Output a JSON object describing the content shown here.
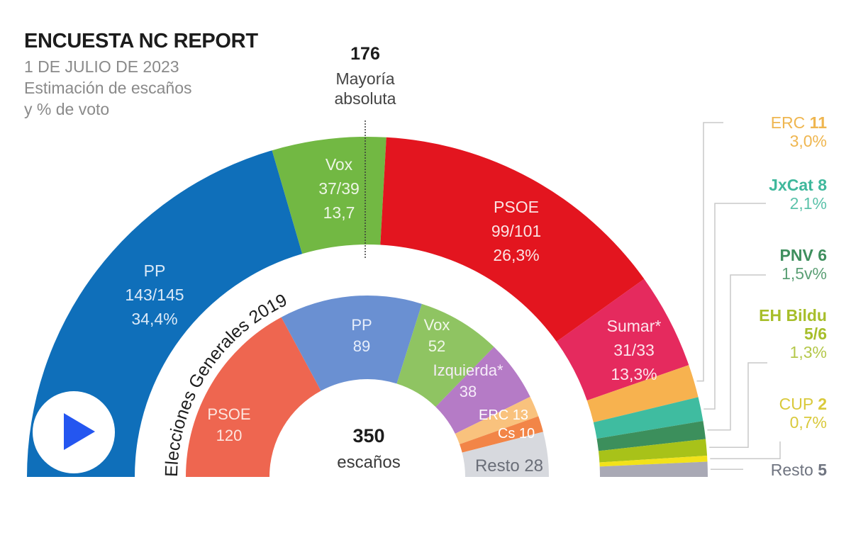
{
  "header": {
    "title": "ENCUESTA NC REPORT",
    "date": "1 DE JULIO DE 2023",
    "subtitle_line1": "Estimación de escaños",
    "subtitle_line2": "y % de voto"
  },
  "majority": {
    "seats": "176",
    "label_line1": "Mayoría",
    "label_line2": "absoluta"
  },
  "center": {
    "total": "350",
    "unit": "escaños"
  },
  "play_button": {
    "icon": "play-icon",
    "color": "#2456f0"
  },
  "chart_data": {
    "type": "pie",
    "title": "ENCUESTA NC REPORT",
    "subtitle": "Estimación de escaños y % de voto",
    "total_seats": 350,
    "majority_seats": 176,
    "series": [
      {
        "name": "Encuesta NC Report 1 julio 2023",
        "ring": "outer",
        "parties": [
          {
            "name": "PP",
            "seats_label": "143/145",
            "seats_min": 143,
            "seats_max": 145,
            "vote_label": "34,4%",
            "vote": 34.4,
            "color": "#0f6fba",
            "text_color": "#dbe9f7"
          },
          {
            "name": "Vox",
            "seats_label": "37/39",
            "seats_min": 37,
            "seats_max": 39,
            "vote_label": "13,7",
            "vote": 13.7,
            "color": "#72b843",
            "text_color": "#eef6e6"
          },
          {
            "name": "PSOE",
            "seats_label": "99/101",
            "seats_min": 99,
            "seats_max": 101,
            "vote_label": "26,3%",
            "vote": 26.3,
            "color": "#e3151f",
            "text_color": "#fbe3e3"
          },
          {
            "name": "Sumar*",
            "seats_label": "31/33",
            "seats_min": 31,
            "seats_max": 33,
            "vote_label": "13,3%",
            "vote": 13.3,
            "color": "#e52a5e",
            "text_color": "#fde4ec"
          },
          {
            "name": "ERC",
            "seats_label": "11",
            "seats_min": 11,
            "seats_max": 11,
            "vote_label": "3,0%",
            "vote": 3.0,
            "color": "#f7b24f",
            "legend_color": "#efb650"
          },
          {
            "name": "JxCat",
            "seats_label": "8",
            "seats_min": 8,
            "seats_max": 8,
            "vote_label": "2,1%",
            "vote": 2.1,
            "color": "#3fbca0",
            "legend_color": "#3fb89c"
          },
          {
            "name": "PNV",
            "seats_label": "6",
            "seats_min": 6,
            "seats_max": 6,
            "vote_label": "1,5v%",
            "vote": 1.5,
            "color": "#3c8f5c",
            "legend_color": "#3f8f5e"
          },
          {
            "name": "EH Bildu",
            "seats_label": "5/6",
            "seats_min": 5,
            "seats_max": 6,
            "vote_label": "1,3%",
            "vote": 1.3,
            "color": "#a8c219",
            "legend_color": "#a7be2a"
          },
          {
            "name": "CUP",
            "seats_label": "2",
            "seats_min": 2,
            "seats_max": 2,
            "vote_label": "0,7%",
            "vote": 0.7,
            "color": "#f2e21a",
            "legend_color": "#d9c93b"
          },
          {
            "name": "Resto",
            "seats_label": "5",
            "seats_min": 5,
            "seats_max": 5,
            "vote_label": "",
            "vote": null,
            "color": "#a9a9b5",
            "legend_color": "#6f7480"
          }
        ]
      },
      {
        "name": "Elecciones Generales 2019",
        "ring": "inner",
        "parties": [
          {
            "name": "PSOE",
            "seats_label": "120",
            "seats": 120,
            "color": "#ee6650",
            "text_color": "#fde6df"
          },
          {
            "name": "PP",
            "seats_label": "89",
            "seats": 89,
            "color": "#6a90d2",
            "text_color": "#e7eefb"
          },
          {
            "name": "Vox",
            "seats_label": "52",
            "seats": 52,
            "color": "#8fc462",
            "text_color": "#f1f8ea"
          },
          {
            "name": "Izquierda*",
            "seats_label": "38",
            "seats": 38,
            "color": "#b57bc6",
            "text_color": "#f6ecf9"
          },
          {
            "name": "ERC",
            "seats_label": "13",
            "seats": 13,
            "color": "#f9c27d",
            "text_color": "#ffffff"
          },
          {
            "name": "Cs",
            "seats_label": "10",
            "seats": 10,
            "color": "#f28547",
            "text_color": "#ffffff"
          },
          {
            "name": "Resto",
            "seats_label": "28",
            "seats": 28,
            "color": "#d7d9de",
            "text_color": "#6a6e78"
          }
        ]
      }
    ]
  }
}
